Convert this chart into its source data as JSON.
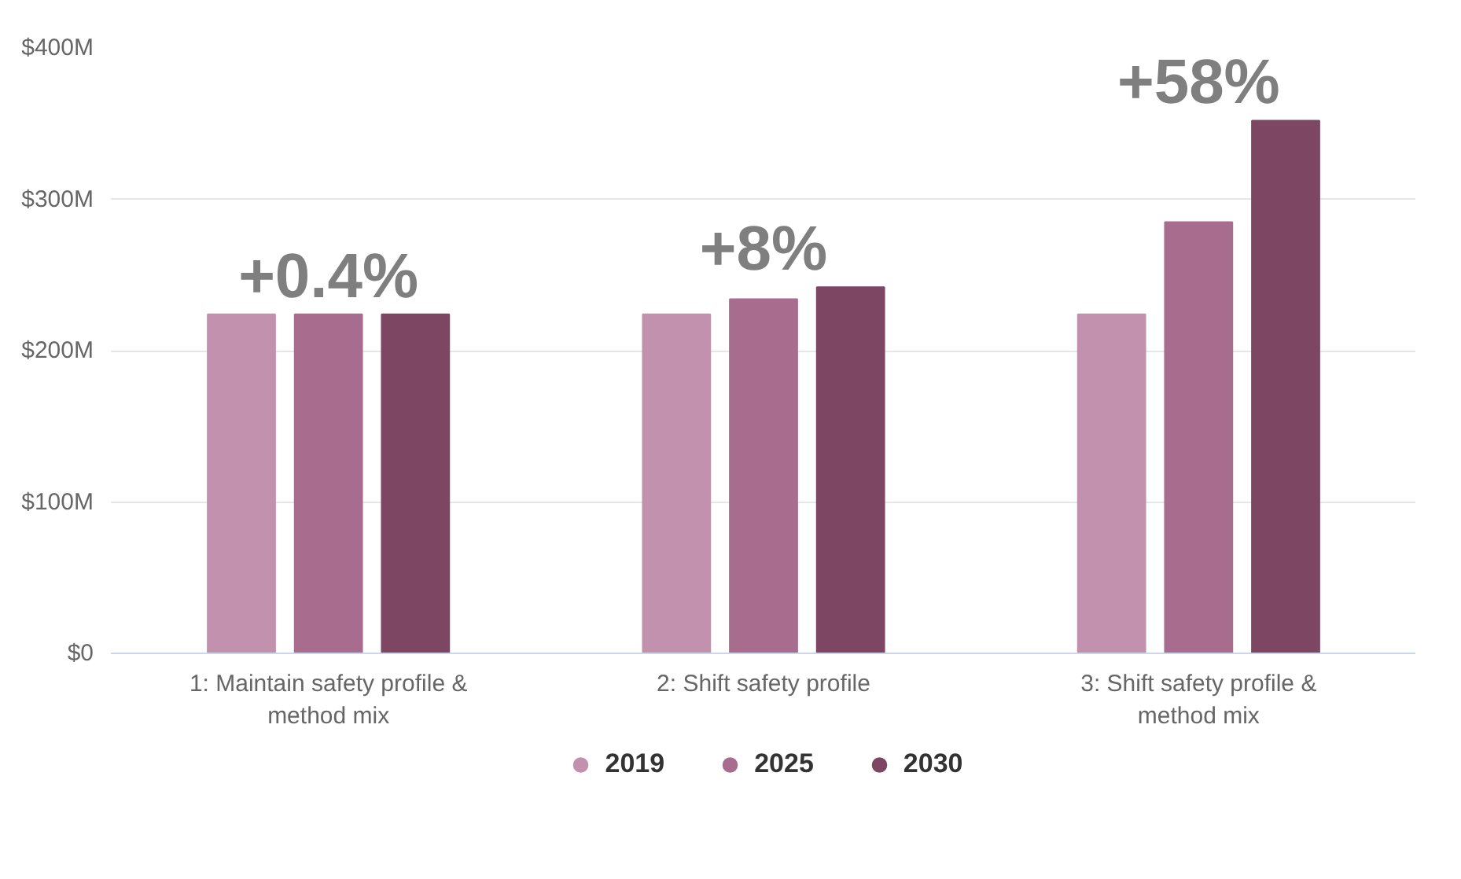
{
  "chart_data": {
    "type": "bar",
    "categories": [
      "1: Maintain safety profile &\nmethod mix",
      "2: Shift safety profile",
      "3: Shift safety profile &\nmethod mix"
    ],
    "series": [
      {
        "name": "2019",
        "color": "#c291ad",
        "values": [
          224,
          224,
          224
        ]
      },
      {
        "name": "2025",
        "color": "#a86d8e",
        "values": [
          224,
          234,
          285
        ]
      },
      {
        "name": "2030",
        "color": "#7d4764",
        "values": [
          224,
          242,
          352
        ]
      }
    ],
    "ylim": [
      0,
      400
    ],
    "yticks": [
      {
        "value": 0,
        "label": "$0"
      },
      {
        "value": 100,
        "label": "$100M"
      },
      {
        "value": 200,
        "label": "$200M"
      },
      {
        "value": 300,
        "label": "$300M"
      },
      {
        "value": 400,
        "label": "$400M"
      }
    ],
    "grid": "y",
    "legend": "bottom",
    "annotations": [
      "+0.4%",
      "+8%",
      "+58%"
    ]
  }
}
